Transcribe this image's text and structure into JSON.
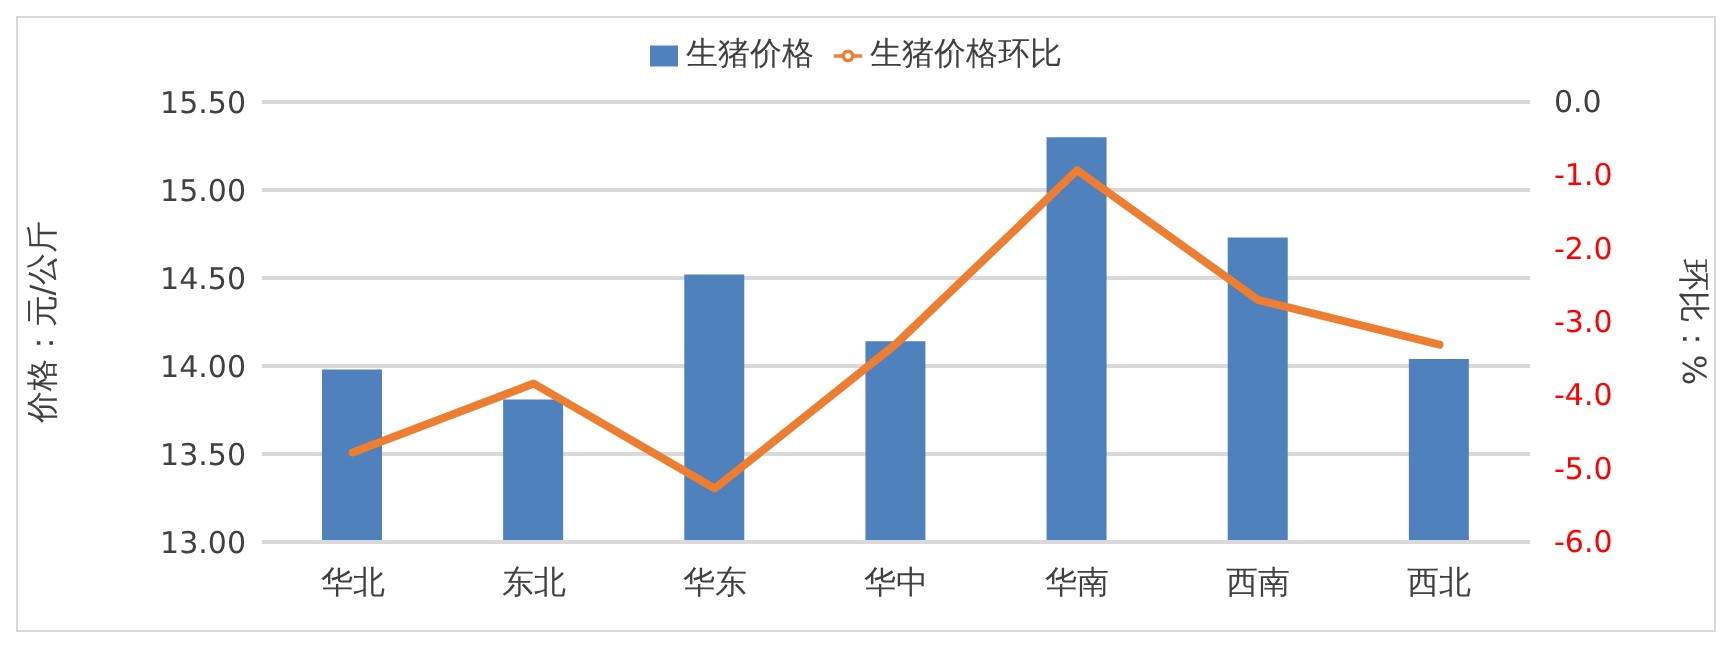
{
  "chart_data": {
    "type": "bar",
    "categories": [
      "华北",
      "东北",
      "华东",
      "华中",
      "华南",
      "西南",
      "西北"
    ],
    "series": [
      {
        "name": "生猪价格",
        "color": "#4f81bd",
        "values": [
          13.98,
          13.81,
          14.52,
          14.14,
          15.3,
          14.73,
          14.04
        ]
      },
      {
        "name": "生猪价格环比",
        "type": "line",
        "axis": "y2",
        "color": "#ed7d31",
        "values": [
          -4.78,
          -3.84,
          -5.27,
          -3.3,
          -0.93,
          -2.7,
          -3.31
        ]
      }
    ],
    "ylabel": "价格：元/公斤",
    "y2label": "环比：%",
    "ylim": [
      13,
      15.5
    ],
    "yticks": [
      {
        "value": 13,
        "label": "13.00"
      },
      {
        "value": 13.5,
        "label": "13.50"
      },
      {
        "value": 14,
        "label": "14.00"
      },
      {
        "value": 14.5,
        "label": "14.50"
      },
      {
        "value": 15,
        "label": "15.00"
      },
      {
        "value": 15.5,
        "label": "15.50"
      }
    ],
    "y2lim": [
      -6,
      0
    ],
    "y2ticks": [
      {
        "value": -6,
        "label": "-6.0"
      },
      {
        "value": -5,
        "label": "-5.0"
      },
      {
        "value": -4,
        "label": "-4.0"
      },
      {
        "value": -3,
        "label": "-3.0"
      },
      {
        "value": -2,
        "label": "-2.0"
      },
      {
        "value": -1,
        "label": "-1.0"
      },
      {
        "value": 0,
        "label": "0.0"
      }
    ],
    "grid": "y",
    "legend": "top",
    "marker": "none",
    "line_style": "solid"
  }
}
